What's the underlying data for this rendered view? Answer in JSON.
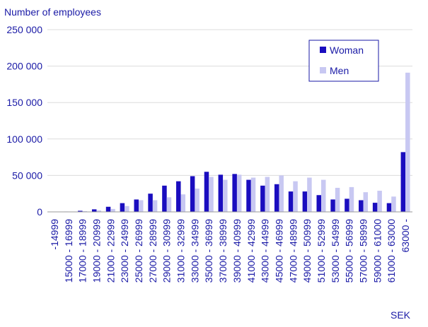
{
  "chart_data": {
    "type": "bar",
    "title": "",
    "ylabel": "Number of employees",
    "xlabel": "SEK",
    "ylim": [
      0,
      250000
    ],
    "yticks": [
      0,
      50000,
      100000,
      150000,
      200000,
      250000
    ],
    "ytick_labels": [
      "0",
      "50 000",
      "100 000",
      "150 000",
      "200 000",
      "250 000"
    ],
    "legend_position": "top-right",
    "grid": true,
    "categories": [
      "-14999",
      "15000 - 16999",
      "17000 - 18999",
      "19000 - 20999",
      "21000 - 22999",
      "23000 - 24999",
      "25000 - 26999",
      "27000 - 28999",
      "29000 - 30999",
      "31000 - 32999",
      "33000 - 34999",
      "35000 - 36999",
      "37000 - 38999",
      "39000 - 40999",
      "41000 - 42999",
      "43000 - 44999",
      "45000 - 46999",
      "47000 - 48999",
      "49000 - 50999",
      "51000 - 52999",
      "53000 - 54999",
      "55000 - 56999",
      "57000 - 58999",
      "59000 - 61000",
      "61000 - 63000",
      "63000 -"
    ],
    "series": [
      {
        "name": "Woman",
        "color": "#1a0dbf",
        "values": [
          200,
          500,
          1500,
          3500,
          7000,
          12000,
          17000,
          25000,
          36000,
          42000,
          49000,
          55000,
          51000,
          52000,
          44000,
          36000,
          38000,
          28000,
          28000,
          23000,
          17000,
          18000,
          16000,
          12500,
          12000,
          82000
        ]
      },
      {
        "name": "Men",
        "color": "#c8c8f2",
        "values": [
          100,
          300,
          1000,
          2000,
          4000,
          8000,
          16000,
          16000,
          20000,
          24000,
          32000,
          48000,
          44000,
          51000,
          47000,
          48000,
          50000,
          42000,
          47000,
          44000,
          33000,
          34000,
          27000,
          29000,
          21000,
          191000
        ]
      }
    ]
  }
}
